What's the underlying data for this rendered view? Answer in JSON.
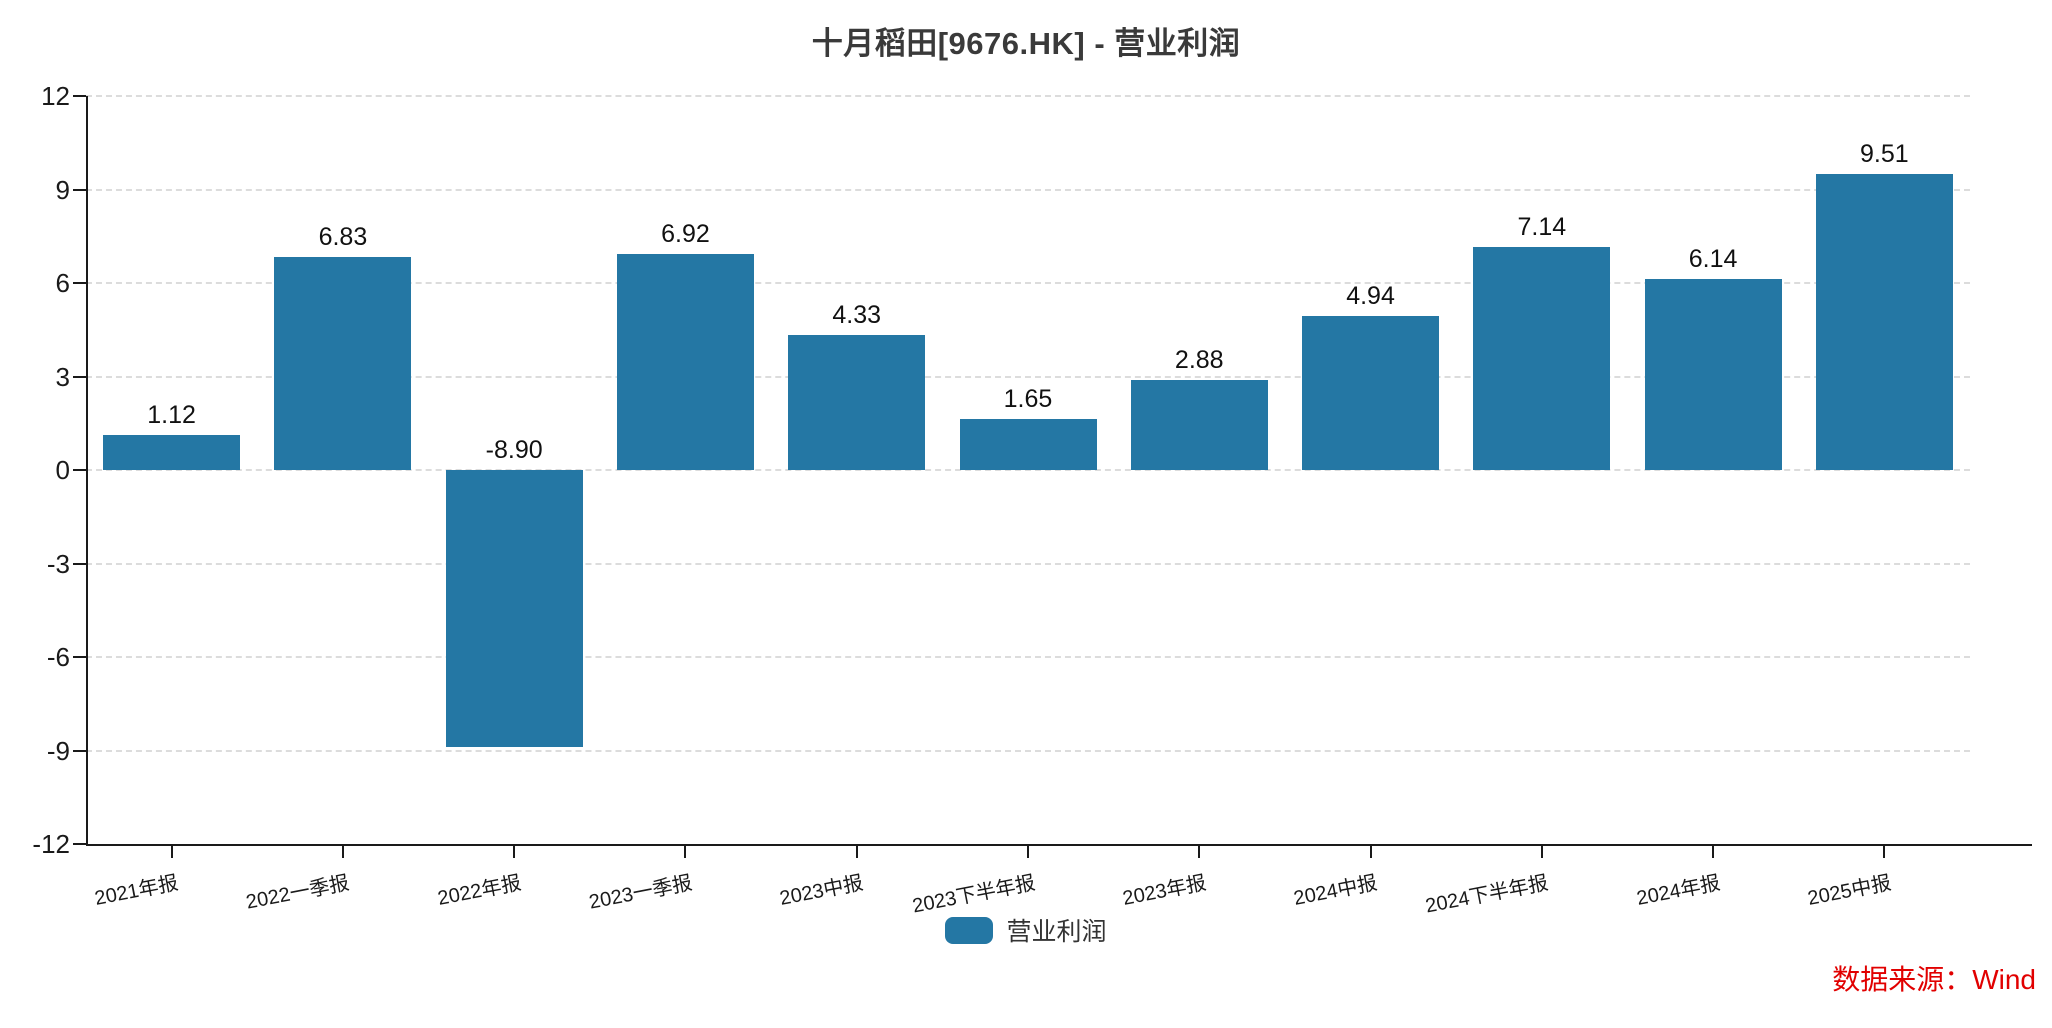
{
  "title": "十月稻田[9676.HK] - 营业利润",
  "legend": {
    "label": "营业利润"
  },
  "source_note": "数据来源：Wind",
  "colors": {
    "bar": "#2477A4",
    "axis": "#1a1a1a",
    "grid": "#dcdcdc",
    "title_text": "#3a3a3a",
    "source_text": "#e10000"
  },
  "chart_data": {
    "type": "bar",
    "title": "十月稻田[9676.HK] - 营业利润",
    "categories": [
      "2021年报",
      "2022一季报",
      "2022年报",
      "2023一季报",
      "2023中报",
      "2023下半年报",
      "2023年报",
      "2024中报",
      "2024下半年报",
      "2024年报",
      "2025中报"
    ],
    "series": [
      {
        "name": "营业利润",
        "values": [
          1.12,
          6.83,
          -8.9,
          6.92,
          4.33,
          1.65,
          2.88,
          4.94,
          7.14,
          6.14,
          9.51
        ],
        "value_labels": [
          "1.12",
          "6.83",
          "-8.90",
          "6.92",
          "4.33",
          "1.65",
          "2.88",
          "4.94",
          "7.14",
          "6.14",
          "9.51"
        ]
      }
    ],
    "xlabel": "",
    "ylabel": "",
    "ylim": [
      -12,
      12
    ],
    "yticks": [
      12,
      9,
      6,
      3,
      0,
      -3,
      -6,
      -9,
      -12
    ],
    "grid": "horizontal-dashed",
    "legend_position": "bottom",
    "value_label_position": "above-bar-top",
    "x_label_rotation_deg": -11
  }
}
